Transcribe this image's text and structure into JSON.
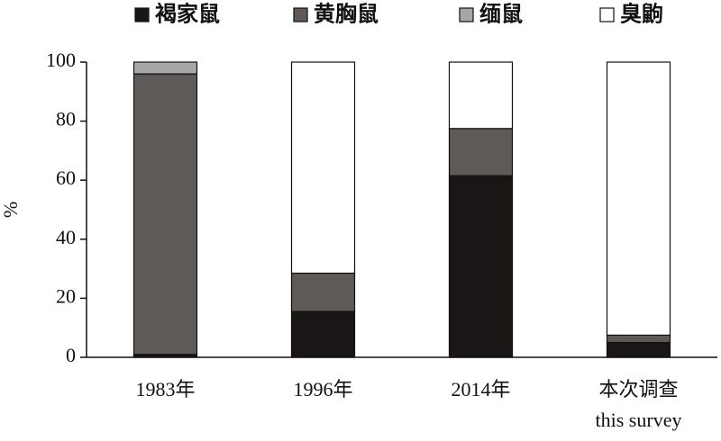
{
  "chart_data": {
    "type": "stacked_bar",
    "y_label": "%",
    "categories": [
      "1983年",
      "1996年",
      "2014年",
      "本次调查"
    ],
    "category_sublabels": [
      null,
      null,
      null,
      "this survey"
    ],
    "series": [
      {
        "name": "褐家鼠",
        "color": "#1a1616",
        "values": [
          1,
          15.5,
          61.5,
          5
        ]
      },
      {
        "name": "黄胸鼠",
        "color": "#5f5a58",
        "values": [
          95,
          13,
          16,
          2.5
        ]
      },
      {
        "name": "缅鼠",
        "color": "#a9a7a6",
        "values": [
          4,
          0,
          0,
          0
        ]
      },
      {
        "name": "臭鼩",
        "color": "#ffffff",
        "values": [
          0,
          71.5,
          22.5,
          92.5
        ]
      }
    ],
    "ylim": [
      0,
      100
    ],
    "yticks": [
      0,
      20,
      40,
      60,
      80,
      100
    ]
  }
}
